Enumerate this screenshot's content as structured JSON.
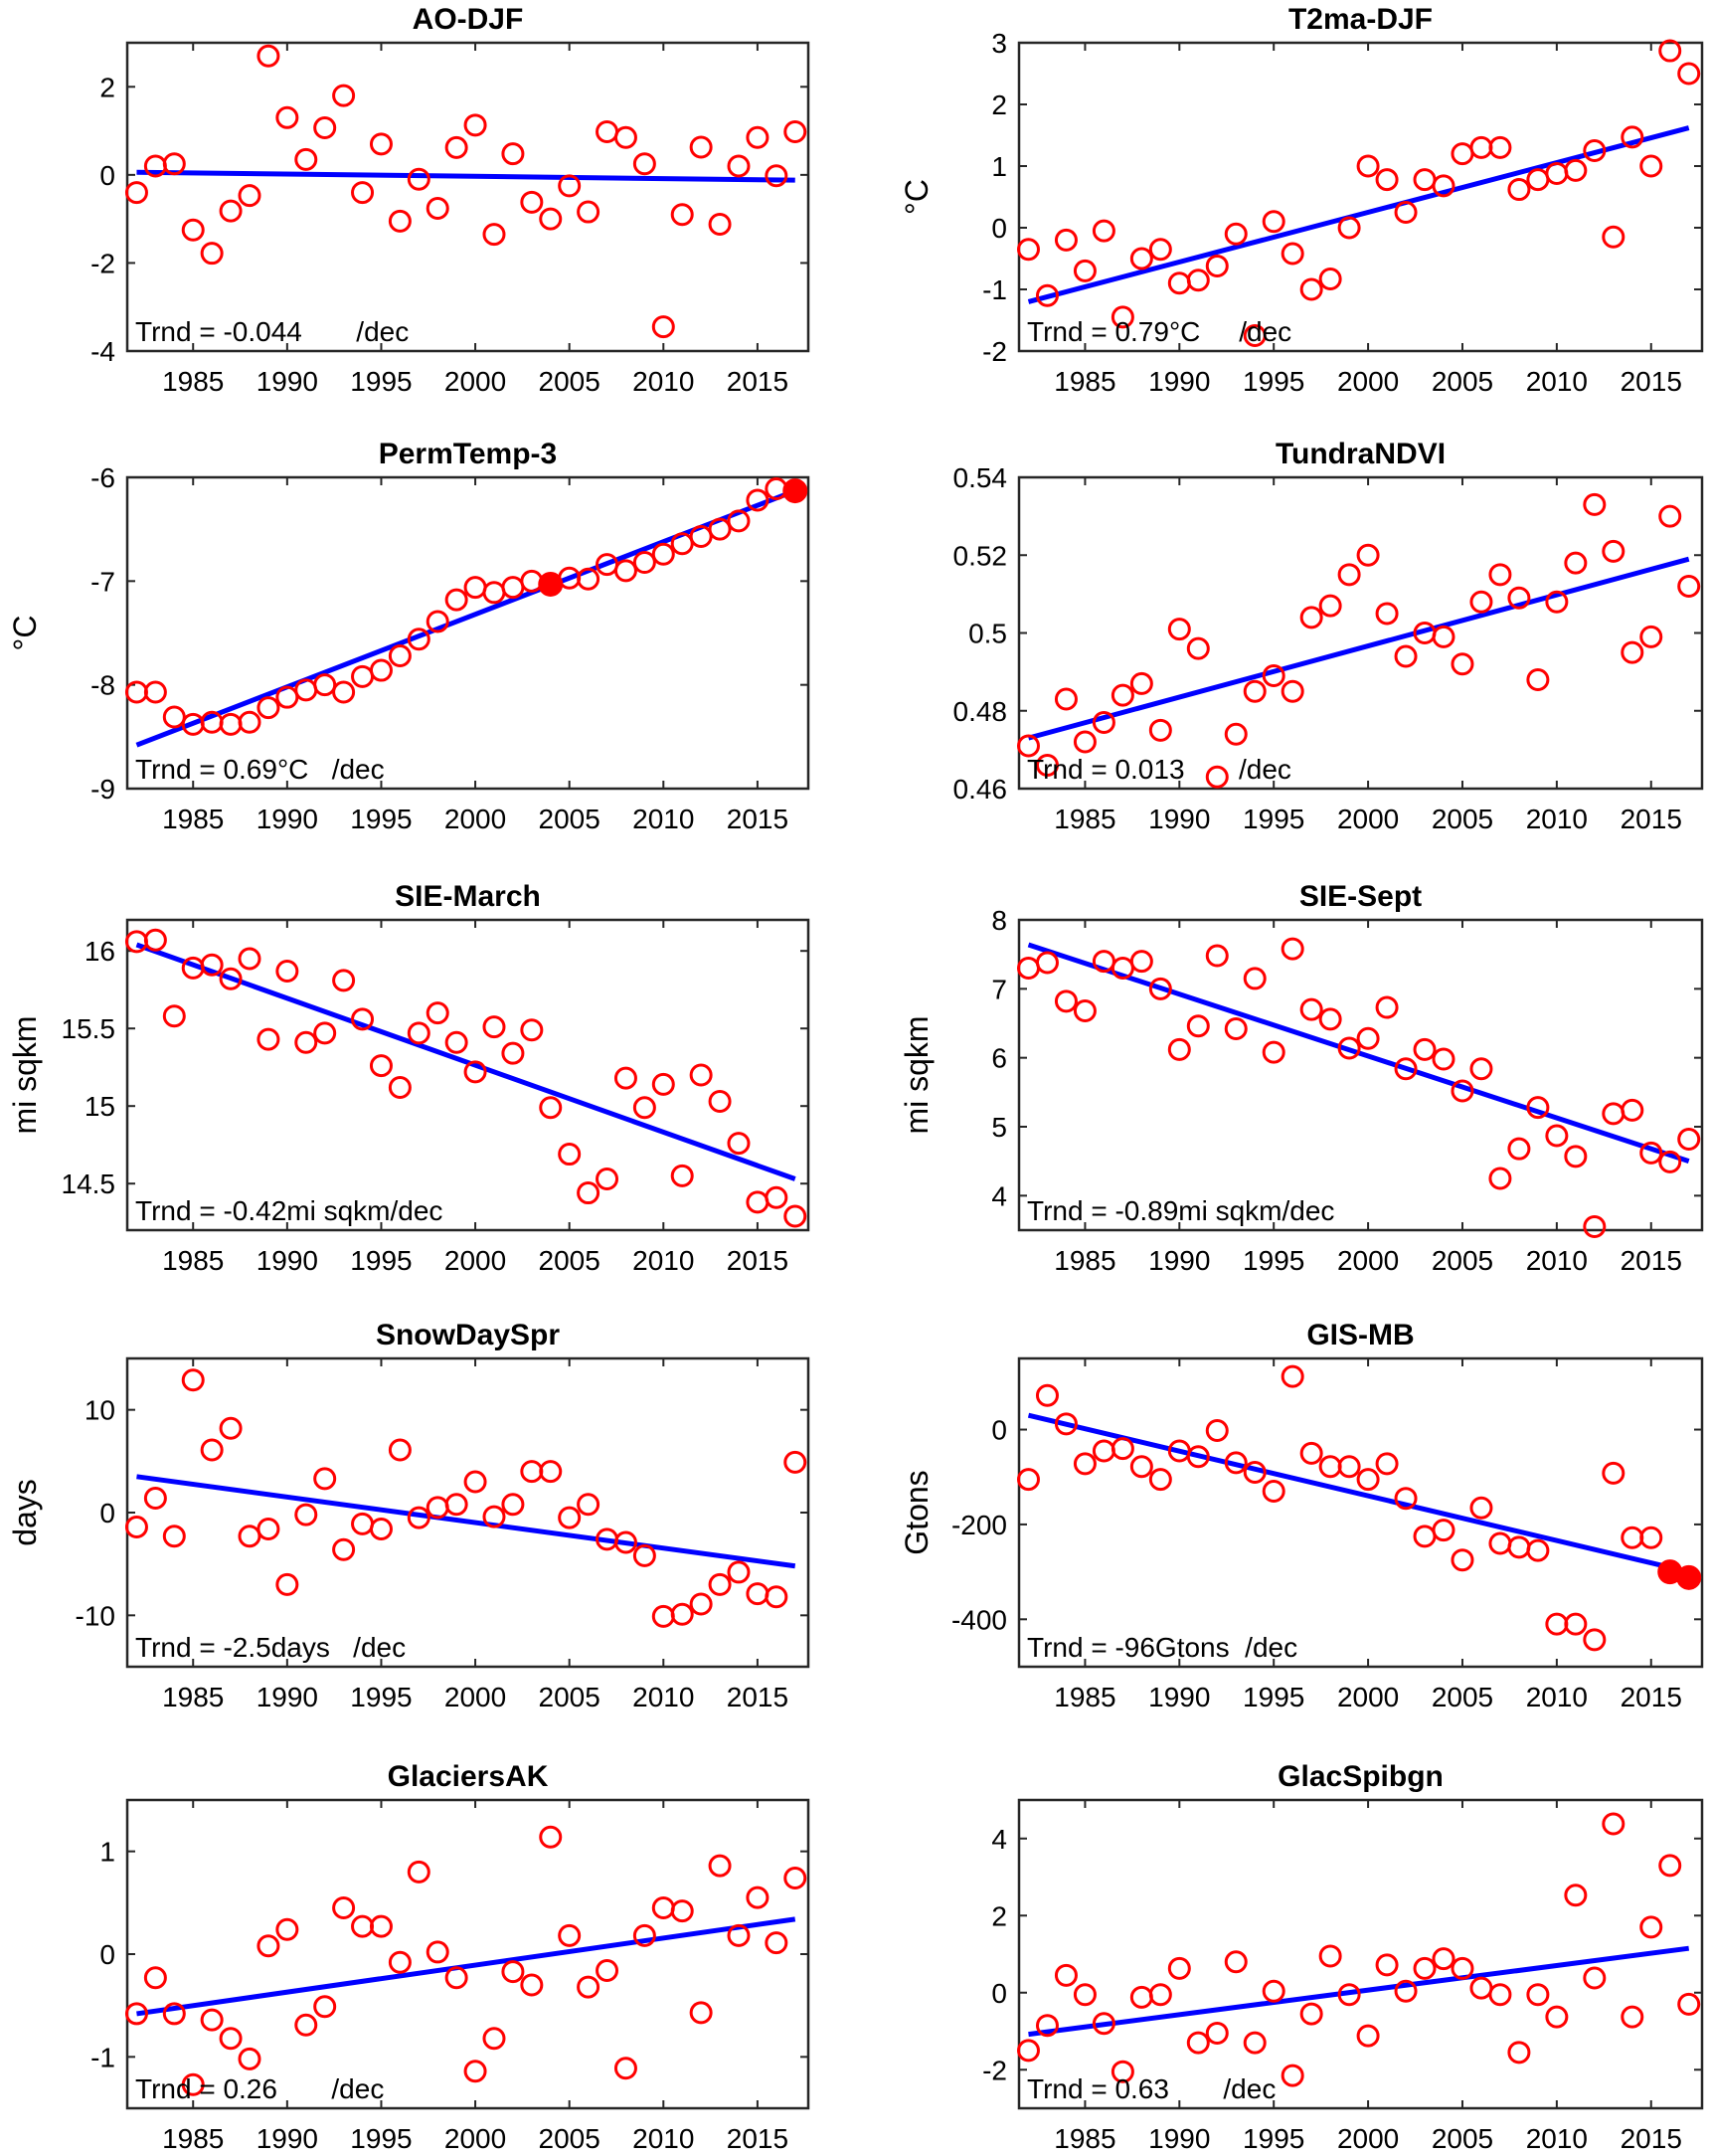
{
  "figure": {
    "marker_color": "#ff0000",
    "trend_color": "#0000ff",
    "axis_color": "#262626"
  },
  "chart_data": [
    {
      "type": "scatter",
      "title": "AO-DJF",
      "xlabel": "",
      "ylabel": "",
      "xlim": [
        1981.5,
        2017.7
      ],
      "ylim": [
        -4,
        3
      ],
      "xticks": [
        1985,
        1990,
        1995,
        2000,
        2005,
        2010,
        2015
      ],
      "yticks": [
        -4,
        -2,
        0,
        2
      ],
      "ytick_labels": [
        "-4",
        "-2",
        "0",
        "2"
      ],
      "x": [
        1982,
        1983,
        1984,
        1985,
        1986,
        1987,
        1988,
        1989,
        1990,
        1991,
        1992,
        1993,
        1994,
        1995,
        1996,
        1997,
        1998,
        1999,
        2000,
        2001,
        2002,
        2003,
        2004,
        2005,
        2006,
        2007,
        2008,
        2009,
        2010,
        2011,
        2012,
        2013,
        2014,
        2015,
        2016,
        2017
      ],
      "values": [
        -0.4,
        0.2,
        0.25,
        -1.25,
        -1.78,
        -0.82,
        -0.47,
        2.7,
        1.3,
        0.35,
        1.07,
        1.8,
        -0.4,
        0.7,
        -1.05,
        -0.1,
        -0.76,
        0.62,
        1.13,
        -1.35,
        0.48,
        -0.62,
        -1.0,
        -0.25,
        -0.84,
        0.98,
        0.85,
        0.25,
        -3.45,
        -0.9,
        0.63,
        -1.12,
        0.2,
        0.85,
        -0.02,
        0.98
      ],
      "filled_points": [],
      "trend": {
        "start": [
          1982,
          0.06
        ],
        "end": [
          2017,
          -0.12
        ]
      },
      "annotation": "Trnd = -0.044       /dec",
      "grid": false
    },
    {
      "type": "scatter",
      "title": "T2ma-DJF",
      "xlabel": "",
      "ylabel": "°C",
      "xlim": [
        1981.5,
        2017.7
      ],
      "ylim": [
        -2,
        3
      ],
      "xticks": [
        1985,
        1990,
        1995,
        2000,
        2005,
        2010,
        2015
      ],
      "yticks": [
        -2,
        -1,
        0,
        1,
        2,
        3
      ],
      "ytick_labels": [
        "-2",
        "-1",
        "0",
        "1",
        "2",
        "3"
      ],
      "x": [
        1982,
        1983,
        1984,
        1985,
        1986,
        1987,
        1988,
        1989,
        1990,
        1991,
        1992,
        1993,
        1994,
        1995,
        1996,
        1997,
        1998,
        1999,
        2000,
        2001,
        2002,
        2003,
        2004,
        2005,
        2006,
        2007,
        2008,
        2009,
        2010,
        2011,
        2012,
        2013,
        2014,
        2015,
        2016,
        2017
      ],
      "values": [
        -0.35,
        -1.1,
        -0.2,
        -0.7,
        -0.05,
        -1.45,
        -0.5,
        -0.35,
        -0.9,
        -0.85,
        -0.62,
        -0.1,
        -1.75,
        0.1,
        -0.42,
        -1.0,
        -0.83,
        0.0,
        1.0,
        0.78,
        0.25,
        0.78,
        0.68,
        1.2,
        1.3,
        1.3,
        0.62,
        0.78,
        0.88,
        0.93,
        1.25,
        -0.15,
        1.47,
        1.0,
        2.87,
        2.5
      ],
      "filled_points": [],
      "trend": {
        "start": [
          1982,
          -1.2
        ],
        "end": [
          2017,
          1.62
        ]
      },
      "annotation": "Trnd = 0.79°C     /dec",
      "grid": false
    },
    {
      "type": "scatter",
      "title": "PermTemp-3",
      "xlabel": "",
      "ylabel": "°C",
      "xlim": [
        1981.5,
        2017.7
      ],
      "ylim": [
        -9,
        -6
      ],
      "xticks": [
        1985,
        1990,
        1995,
        2000,
        2005,
        2010,
        2015
      ],
      "yticks": [
        -9,
        -8,
        -7,
        -6
      ],
      "ytick_labels": [
        "-9",
        "-8",
        "-7",
        "-6"
      ],
      "x": [
        1982,
        1983,
        1984,
        1985,
        1986,
        1987,
        1988,
        1989,
        1990,
        1991,
        1992,
        1993,
        1994,
        1995,
        1996,
        1997,
        1998,
        1999,
        2000,
        2001,
        2002,
        2003,
        2004,
        2005,
        2006,
        2007,
        2008,
        2009,
        2010,
        2011,
        2012,
        2013,
        2014,
        2015,
        2016,
        2017
      ],
      "values": [
        -8.07,
        -8.07,
        -8.31,
        -8.38,
        -8.36,
        -8.38,
        -8.36,
        -8.22,
        -8.12,
        -8.05,
        -8.0,
        -8.07,
        -7.92,
        -7.86,
        -7.72,
        -7.56,
        -7.39,
        -7.18,
        -7.06,
        -7.11,
        -7.06,
        -7.0,
        -7.03,
        -6.97,
        -6.98,
        -6.84,
        -6.9,
        -6.82,
        -6.74,
        -6.64,
        -6.57,
        -6.5,
        -6.42,
        -6.22,
        -6.11,
        -6.13
      ],
      "filled_points": [
        2004,
        2017
      ],
      "trend": {
        "start": [
          1982,
          -8.58
        ],
        "end": [
          2017,
          -6.13
        ]
      },
      "annotation": "Trnd = 0.69°C   /dec",
      "grid": false
    },
    {
      "type": "scatter",
      "title": "TundraNDVI",
      "xlabel": "",
      "ylabel": "",
      "xlim": [
        1981.5,
        2017.7
      ],
      "ylim": [
        0.46,
        0.54
      ],
      "xticks": [
        1985,
        1990,
        1995,
        2000,
        2005,
        2010,
        2015
      ],
      "yticks": [
        0.46,
        0.48,
        0.5,
        0.52,
        0.54
      ],
      "ytick_labels": [
        "0.46",
        "0.48",
        "0.5",
        "0.52",
        "0.54"
      ],
      "x": [
        1982,
        1983,
        1984,
        1985,
        1986,
        1987,
        1988,
        1989,
        1990,
        1991,
        1992,
        1993,
        1994,
        1995,
        1996,
        1997,
        1998,
        1999,
        2000,
        2001,
        2002,
        2003,
        2004,
        2005,
        2006,
        2007,
        2008,
        2009,
        2010,
        2011,
        2012,
        2013,
        2014,
        2015,
        2016,
        2017
      ],
      "values": [
        0.471,
        0.466,
        0.483,
        0.472,
        0.477,
        0.484,
        0.487,
        0.475,
        0.501,
        0.496,
        0.463,
        0.474,
        0.485,
        0.489,
        0.485,
        0.504,
        0.507,
        0.515,
        0.52,
        0.505,
        0.494,
        0.5,
        0.499,
        0.492,
        0.508,
        0.515,
        0.509,
        0.488,
        0.508,
        0.518,
        0.533,
        0.521,
        0.495,
        0.499,
        0.53,
        0.512
      ],
      "filled_points": [],
      "trend": {
        "start": [
          1982,
          0.473
        ],
        "end": [
          2017,
          0.519
        ]
      },
      "annotation": "Trnd = 0.013       /dec",
      "grid": false
    },
    {
      "type": "scatter",
      "title": "SIE-March",
      "xlabel": "",
      "ylabel": "mi sqkm",
      "xlim": [
        1981.5,
        2017.7
      ],
      "ylim": [
        14.2,
        16.2
      ],
      "xticks": [
        1985,
        1990,
        1995,
        2000,
        2005,
        2010,
        2015
      ],
      "yticks": [
        14.5,
        15,
        15.5,
        16
      ],
      "ytick_labels": [
        "14.5",
        "15",
        "15.5",
        "16"
      ],
      "x": [
        1982,
        1983,
        1984,
        1985,
        1986,
        1987,
        1988,
        1989,
        1990,
        1991,
        1992,
        1993,
        1994,
        1995,
        1996,
        1997,
        1998,
        1999,
        2000,
        2001,
        2002,
        2003,
        2004,
        2005,
        2006,
        2007,
        2008,
        2009,
        2010,
        2011,
        2012,
        2013,
        2014,
        2015,
        2016,
        2017
      ],
      "values": [
        16.06,
        16.07,
        15.58,
        15.89,
        15.91,
        15.82,
        15.95,
        15.43,
        15.87,
        15.41,
        15.47,
        15.81,
        15.56,
        15.26,
        15.12,
        15.47,
        15.6,
        15.41,
        15.22,
        15.51,
        15.34,
        15.49,
        14.99,
        14.69,
        14.44,
        14.53,
        15.18,
        14.99,
        15.14,
        14.55,
        15.2,
        15.03,
        14.76,
        14.38,
        14.41,
        14.29
      ],
      "filled_points": [],
      "trend": {
        "start": [
          1982,
          16.04
        ],
        "end": [
          2017,
          14.53
        ]
      },
      "annotation": "Trnd = -0.42mi sqkm/dec",
      "grid": false
    },
    {
      "type": "scatter",
      "title": "SIE-Sept",
      "xlabel": "",
      "ylabel": "mi sqkm",
      "xlim": [
        1981.5,
        2017.7
      ],
      "ylim": [
        3.5,
        8
      ],
      "xticks": [
        1985,
        1990,
        1995,
        2000,
        2005,
        2010,
        2015
      ],
      "yticks": [
        4,
        5,
        6,
        7,
        8
      ],
      "ytick_labels": [
        "4",
        "5",
        "6",
        "7",
        "8"
      ],
      "x": [
        1982,
        1983,
        1984,
        1985,
        1986,
        1987,
        1988,
        1989,
        1990,
        1991,
        1992,
        1993,
        1994,
        1995,
        1996,
        1997,
        1998,
        1999,
        2000,
        2001,
        2002,
        2003,
        2004,
        2005,
        2006,
        2007,
        2008,
        2009,
        2010,
        2011,
        2012,
        2013,
        2014,
        2015,
        2016,
        2017
      ],
      "values": [
        7.3,
        7.38,
        6.82,
        6.68,
        7.4,
        7.3,
        7.4,
        7.0,
        6.12,
        6.46,
        7.48,
        6.42,
        7.15,
        6.08,
        7.58,
        6.7,
        6.56,
        6.14,
        6.28,
        6.73,
        5.84,
        6.12,
        5.98,
        5.52,
        5.84,
        4.25,
        4.68,
        5.28,
        4.87,
        4.57,
        3.55,
        5.19,
        5.24,
        4.62,
        4.49,
        4.82
      ],
      "filled_points": [],
      "trend": {
        "start": [
          1982,
          7.64
        ],
        "end": [
          2017,
          4.5
        ]
      },
      "annotation": "Trnd = -0.89mi sqkm/dec",
      "grid": false
    },
    {
      "type": "scatter",
      "title": "SnowDaySpr",
      "xlabel": "",
      "ylabel": "days",
      "xlim": [
        1981.5,
        2017.7
      ],
      "ylim": [
        -15,
        15
      ],
      "xticks": [
        1985,
        1990,
        1995,
        2000,
        2005,
        2010,
        2015
      ],
      "yticks": [
        -10,
        0,
        10
      ],
      "ytick_labels": [
        "-10",
        "0",
        "10"
      ],
      "x": [
        1982,
        1983,
        1984,
        1985,
        1986,
        1987,
        1988,
        1989,
        1990,
        1991,
        1992,
        1993,
        1994,
        1995,
        1996,
        1997,
        1998,
        1999,
        2000,
        2001,
        2002,
        2003,
        2004,
        2005,
        2006,
        2007,
        2008,
        2009,
        2010,
        2011,
        2012,
        2013,
        2014,
        2015,
        2016,
        2017
      ],
      "values": [
        -1.4,
        1.4,
        -2.3,
        12.9,
        6.1,
        8.2,
        -2.3,
        -1.6,
        -7.0,
        -0.2,
        3.3,
        -3.6,
        -1.1,
        -1.6,
        6.1,
        -0.5,
        0.5,
        0.8,
        3.0,
        -0.4,
        0.8,
        4.0,
        4.0,
        -0.5,
        0.8,
        -2.6,
        -2.9,
        -4.2,
        -10.1,
        -9.9,
        -8.9,
        -7.0,
        -5.8,
        -7.9,
        -8.2,
        4.9
      ],
      "filled_points": [],
      "trend": {
        "start": [
          1982,
          3.5
        ],
        "end": [
          2017,
          -5.2
        ]
      },
      "annotation": "Trnd = -2.5days   /dec",
      "grid": false
    },
    {
      "type": "scatter",
      "title": "GIS-MB",
      "xlabel": "",
      "ylabel": "Gtons",
      "xlim": [
        1981.5,
        2017.7
      ],
      "ylim": [
        -500,
        150
      ],
      "xticks": [
        1985,
        1990,
        1995,
        2000,
        2005,
        2010,
        2015
      ],
      "yticks": [
        -400,
        -200,
        0
      ],
      "ytick_labels": [
        "-400",
        "-200",
        "0"
      ],
      "x": [
        1982,
        1983,
        1984,
        1985,
        1986,
        1987,
        1988,
        1989,
        1990,
        1991,
        1992,
        1993,
        1994,
        1995,
        1996,
        1997,
        1998,
        1999,
        2000,
        2001,
        2002,
        2003,
        2004,
        2005,
        2006,
        2007,
        2008,
        2009,
        2010,
        2011,
        2012,
        2013,
        2014,
        2015,
        2016,
        2017
      ],
      "values": [
        -105,
        72,
        12,
        -72,
        -45,
        -40,
        -78,
        -105,
        -45,
        -57,
        -2,
        -70,
        -90,
        -130,
        112,
        -50,
        -78,
        -78,
        -105,
        -72,
        -145,
        -225,
        -212,
        -275,
        -165,
        -240,
        -248,
        -255,
        -410,
        -410,
        -443,
        -92,
        -228,
        -228,
        -300,
        -312
      ],
      "filled_points": [
        2016,
        2017
      ],
      "trend": {
        "start": [
          1982,
          30
        ],
        "end": [
          2017,
          -300
        ]
      },
      "annotation": "Trnd = -96Gtons  /dec",
      "grid": false
    },
    {
      "type": "scatter",
      "title": "GlaciersAK",
      "xlabel": "",
      "ylabel": "",
      "xlim": [
        1981.5,
        2017.7
      ],
      "ylim": [
        -1.5,
        1.5
      ],
      "xticks": [
        1985,
        1990,
        1995,
        2000,
        2005,
        2010,
        2015
      ],
      "yticks": [
        -1,
        0,
        1
      ],
      "ytick_labels": [
        "-1",
        "0",
        "1"
      ],
      "x": [
        1982,
        1983,
        1984,
        1985,
        1986,
        1987,
        1988,
        1989,
        1990,
        1991,
        1992,
        1993,
        1994,
        1995,
        1996,
        1997,
        1998,
        1999,
        2000,
        2001,
        2002,
        2003,
        2004,
        2005,
        2006,
        2007,
        2008,
        2009,
        2010,
        2011,
        2012,
        2013,
        2014,
        2015,
        2016,
        2017
      ],
      "values": [
        -0.58,
        -0.23,
        -0.58,
        -1.27,
        -0.64,
        -0.82,
        -1.02,
        0.08,
        0.24,
        -0.69,
        -0.51,
        0.45,
        0.27,
        0.27,
        -0.08,
        0.8,
        0.02,
        -0.23,
        -1.14,
        -0.82,
        -0.17,
        -0.3,
        1.14,
        0.18,
        -0.32,
        -0.16,
        -1.11,
        0.18,
        0.45,
        0.42,
        -0.57,
        0.86,
        0.18,
        0.55,
        0.11,
        0.74
      ],
      "filled_points": [],
      "trend": {
        "start": [
          1982,
          -0.58
        ],
        "end": [
          2017,
          0.34
        ]
      },
      "annotation": "Trnd = 0.26       /dec",
      "grid": false
    },
    {
      "type": "scatter",
      "title": "GlacSpibgn",
      "xlabel": "",
      "ylabel": "",
      "xlim": [
        1981.5,
        2017.7
      ],
      "ylim": [
        -3,
        5
      ],
      "xticks": [
        1985,
        1990,
        1995,
        2000,
        2005,
        2010,
        2015
      ],
      "yticks": [
        -2,
        0,
        2,
        4
      ],
      "ytick_labels": [
        "-2",
        "0",
        "2",
        "4"
      ],
      "x": [
        1982,
        1983,
        1984,
        1985,
        1986,
        1987,
        1988,
        1989,
        1990,
        1991,
        1992,
        1993,
        1994,
        1995,
        1996,
        1997,
        1998,
        1999,
        2000,
        2001,
        2002,
        2003,
        2004,
        2005,
        2006,
        2007,
        2008,
        2009,
        2010,
        2011,
        2012,
        2013,
        2014,
        2015,
        2016,
        2017
      ],
      "values": [
        -1.5,
        -0.85,
        0.45,
        -0.05,
        -0.8,
        -2.05,
        -0.12,
        -0.05,
        0.63,
        -1.3,
        -1.05,
        0.8,
        -1.3,
        0.04,
        -2.15,
        -0.55,
        0.95,
        -0.05,
        -1.12,
        0.72,
        0.04,
        0.63,
        0.88,
        0.63,
        0.12,
        -0.05,
        -1.55,
        -0.05,
        -0.63,
        2.53,
        0.38,
        4.38,
        -0.63,
        1.7,
        3.3,
        -0.3
      ],
      "filled_points": [],
      "trend": {
        "start": [
          1982,
          -1.08
        ],
        "end": [
          2017,
          1.15
        ]
      },
      "annotation": "Trnd = 0.63       /dec",
      "grid": false
    }
  ]
}
